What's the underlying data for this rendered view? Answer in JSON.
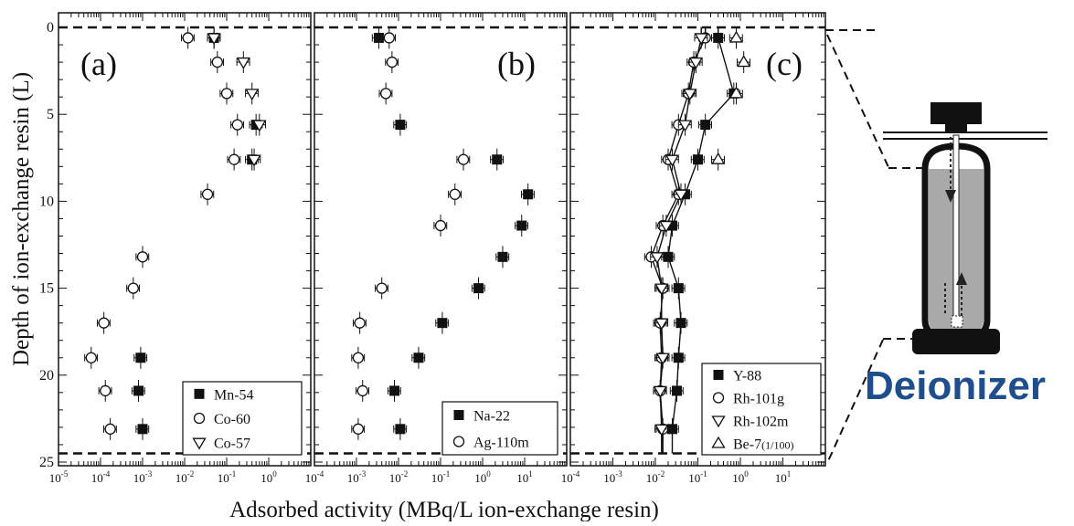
{
  "chart_data": {
    "type": "scatter",
    "xlabel": "Adsorbed activity (MBq/L ion-exchange resin)",
    "ylabel": "Depth of ion-exchange resin (L)",
    "x_scale": "log",
    "y_inverted": true,
    "y_ticks": [
      "0",
      "5",
      "10",
      "15",
      "20",
      "25"
    ],
    "panels": [
      {
        "label": "(a)",
        "xlim": [
          1e-05,
          10
        ],
        "x_ticks": [
          {
            "base": "10",
            "exp": "-5",
            "v": 1e-05
          },
          {
            "base": "10",
            "exp": "-4",
            "v": 0.0001
          },
          {
            "base": "10",
            "exp": "-3",
            "v": 0.001
          },
          {
            "base": "10",
            "exp": "-2",
            "v": 0.01
          },
          {
            "base": "10",
            "exp": "-1",
            "v": 0.1
          },
          {
            "base": "10",
            "exp": "0",
            "v": 1
          }
        ],
        "series": [
          {
            "name": "Mn-54",
            "marker": "square-filled",
            "points": [
              [
                0.05,
                0.6
              ],
              [
                0.5,
                5.6
              ],
              [
                0.4,
                7.6
              ],
              [
                0.0009,
                19
              ],
              [
                0.0008,
                20.9
              ],
              [
                0.001,
                23.1
              ]
            ]
          },
          {
            "name": "Co-60",
            "marker": "circle-open",
            "points": [
              [
                0.012,
                0.6
              ],
              [
                0.06,
                2.0
              ],
              [
                0.1,
                3.8
              ],
              [
                0.18,
                5.6
              ],
              [
                0.15,
                7.6
              ],
              [
                0.035,
                9.6
              ],
              [
                0.001,
                13.2
              ],
              [
                0.0006,
                15.0
              ],
              [
                0.00012,
                17.0
              ],
              [
                6e-05,
                19.0
              ],
              [
                0.00013,
                20.9
              ],
              [
                0.00017,
                23.1
              ]
            ]
          },
          {
            "name": "Co-57",
            "marker": "triangle-down-open",
            "points": [
              [
                0.05,
                0.6
              ],
              [
                0.25,
                2.0
              ],
              [
                0.4,
                3.8
              ],
              [
                0.6,
                5.6
              ],
              [
                0.45,
                7.6
              ]
            ]
          }
        ]
      },
      {
        "label": "(b)",
        "xlim": [
          0.0001,
          100
        ],
        "x_ticks": [
          {
            "base": "10",
            "exp": "-4",
            "v": 0.0001
          },
          {
            "base": "10",
            "exp": "-3",
            "v": 0.001
          },
          {
            "base": "10",
            "exp": "-2",
            "v": 0.01
          },
          {
            "base": "10",
            "exp": "-1",
            "v": 0.1
          },
          {
            "base": "10",
            "exp": "0",
            "v": 1
          },
          {
            "base": "10",
            "exp": "1",
            "v": 10
          }
        ],
        "series": [
          {
            "name": "Na-22",
            "marker": "square-filled",
            "points": [
              [
                0.0034,
                0.6
              ],
              [
                0.011,
                5.6
              ],
              [
                2.2,
                7.6
              ],
              [
                12,
                9.6
              ],
              [
                8.5,
                11.4
              ],
              [
                3.0,
                13.2
              ],
              [
                0.8,
                15.0
              ],
              [
                0.11,
                17.0
              ],
              [
                0.03,
                19.0
              ],
              [
                0.008,
                20.9
              ],
              [
                0.011,
                23.1
              ]
            ]
          },
          {
            "name": "Ag-110m",
            "marker": "circle-open",
            "points": [
              [
                0.006,
                0.6
              ],
              [
                0.007,
                2.0
              ],
              [
                0.005,
                3.8
              ],
              [
                0.35,
                7.6
              ],
              [
                0.22,
                9.6
              ],
              [
                0.1,
                11.4
              ],
              [
                0.004,
                15.0
              ],
              [
                0.0012,
                17.0
              ],
              [
                0.0011,
                19.0
              ],
              [
                0.0014,
                20.9
              ],
              [
                0.0011,
                23.1
              ]
            ]
          }
        ]
      },
      {
        "label": "(c)",
        "xlim": [
          0.0001,
          100
        ],
        "x_ticks": [
          {
            "base": "10",
            "exp": "-4",
            "v": 0.0001
          },
          {
            "base": "10",
            "exp": "-3",
            "v": 0.001
          },
          {
            "base": "10",
            "exp": "-2",
            "v": 0.01
          },
          {
            "base": "10",
            "exp": "-1",
            "v": 0.1
          },
          {
            "base": "10",
            "exp": "0",
            "v": 1
          },
          {
            "base": "10",
            "exp": "1",
            "v": 10
          }
        ],
        "series": [
          {
            "name": "Y-88",
            "marker": "square-filled",
            "points": [
              [
                0.3,
                0.6
              ],
              [
                0.7,
                3.8
              ],
              [
                0.15,
                5.6
              ],
              [
                0.1,
                7.6
              ],
              [
                0.05,
                9.6
              ],
              [
                0.025,
                11.4
              ],
              [
                0.02,
                13.2
              ],
              [
                0.035,
                15.0
              ],
              [
                0.04,
                17.0
              ],
              [
                0.035,
                19.0
              ],
              [
                0.032,
                20.9
              ],
              [
                0.025,
                23.1
              ]
            ]
          },
          {
            "name": "Rh-101g",
            "marker": "circle-open",
            "points": [
              [
                0.15,
                0.6
              ],
              [
                0.08,
                2.0
              ],
              [
                0.06,
                3.8
              ],
              [
                0.035,
                5.6
              ],
              [
                0.02,
                7.6
              ],
              [
                0.035,
                9.6
              ],
              [
                0.015,
                11.4
              ],
              [
                0.008,
                13.2
              ],
              [
                0.015,
                15.0
              ],
              [
                0.013,
                17.0
              ],
              [
                0.014,
                19.0
              ],
              [
                0.013,
                20.9
              ],
              [
                0.015,
                23.1
              ]
            ]
          },
          {
            "name": "Rh-102m",
            "marker": "triangle-down-open",
            "points": [
              [
                0.12,
                0.6
              ],
              [
                0.09,
                2.0
              ],
              [
                0.065,
                3.8
              ],
              [
                0.05,
                5.6
              ],
              [
                0.025,
                7.6
              ],
              [
                0.04,
                9.6
              ],
              [
                0.018,
                11.4
              ],
              [
                0.011,
                13.2
              ],
              [
                0.014,
                15.0
              ],
              [
                0.014,
                17.0
              ],
              [
                0.015,
                19.0
              ],
              [
                0.013,
                20.9
              ],
              [
                0.014,
                23.1
              ]
            ]
          },
          {
            "name": "Be-7",
            "name_suffix": "(1/100)",
            "marker": "triangle-up-open",
            "points": [
              [
                0.8,
                0.6
              ],
              [
                1.2,
                2.0
              ],
              [
                0.8,
                3.8
              ],
              [
                0.3,
                7.6
              ]
            ]
          }
        ]
      }
    ]
  },
  "deionizer": {
    "label": "Deionizer"
  }
}
